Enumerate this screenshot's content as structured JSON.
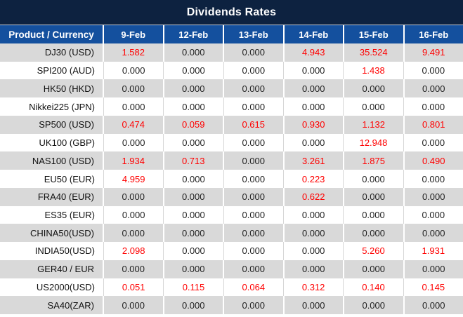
{
  "title": "Dividends Rates",
  "colors": {
    "title_bg": "#0d2240",
    "header_bg": "#14509e",
    "header_text": "#ffffff",
    "row_alt_bg": "#d9d9d9",
    "row_bg": "#ffffff",
    "zero_text": "#1f1f1f",
    "nonzero_text": "#ff0000"
  },
  "chart_data": {
    "type": "table",
    "title": "Dividends Rates",
    "product_header": "Product / Currency",
    "date_headers": [
      "9-Feb",
      "12-Feb",
      "13-Feb",
      "14-Feb",
      "15-Feb",
      "16-Feb"
    ],
    "rows": [
      {
        "product": "DJ30 (USD)",
        "values": [
          "1.582",
          "0.000",
          "0.000",
          "4.943",
          "35.524",
          "9.491"
        ]
      },
      {
        "product": "SPI200 (AUD)",
        "values": [
          "0.000",
          "0.000",
          "0.000",
          "0.000",
          "1.438",
          "0.000"
        ]
      },
      {
        "product": "HK50 (HKD)",
        "values": [
          "0.000",
          "0.000",
          "0.000",
          "0.000",
          "0.000",
          "0.000"
        ]
      },
      {
        "product": "Nikkei225 (JPN)",
        "values": [
          "0.000",
          "0.000",
          "0.000",
          "0.000",
          "0.000",
          "0.000"
        ]
      },
      {
        "product": "SP500 (USD)",
        "values": [
          "0.474",
          "0.059",
          "0.615",
          "0.930",
          "1.132",
          "0.801"
        ]
      },
      {
        "product": "UK100 (GBP)",
        "values": [
          "0.000",
          "0.000",
          "0.000",
          "0.000",
          "12.948",
          "0.000"
        ]
      },
      {
        "product": "NAS100 (USD)",
        "values": [
          "1.934",
          "0.713",
          "0.000",
          "3.261",
          "1.875",
          "0.490"
        ]
      },
      {
        "product": "EU50 (EUR)",
        "values": [
          "4.959",
          "0.000",
          "0.000",
          "0.223",
          "0.000",
          "0.000"
        ]
      },
      {
        "product": "FRA40 (EUR)",
        "values": [
          "0.000",
          "0.000",
          "0.000",
          "0.622",
          "0.000",
          "0.000"
        ]
      },
      {
        "product": "ES35 (EUR)",
        "values": [
          "0.000",
          "0.000",
          "0.000",
          "0.000",
          "0.000",
          "0.000"
        ]
      },
      {
        "product": "CHINA50(USD)",
        "values": [
          "0.000",
          "0.000",
          "0.000",
          "0.000",
          "0.000",
          "0.000"
        ]
      },
      {
        "product": "INDIA50(USD)",
        "values": [
          "2.098",
          "0.000",
          "0.000",
          "0.000",
          "5.260",
          "1.931"
        ]
      },
      {
        "product": "GER40 / EUR",
        "values": [
          "0.000",
          "0.000",
          "0.000",
          "0.000",
          "0.000",
          "0.000"
        ]
      },
      {
        "product": "US2000(USD)",
        "values": [
          "0.051",
          "0.115",
          "0.064",
          "0.312",
          "0.140",
          "0.145"
        ]
      },
      {
        "product": "SA40(ZAR)",
        "values": [
          "0.000",
          "0.000",
          "0.000",
          "0.000",
          "0.000",
          "0.000"
        ]
      }
    ]
  }
}
